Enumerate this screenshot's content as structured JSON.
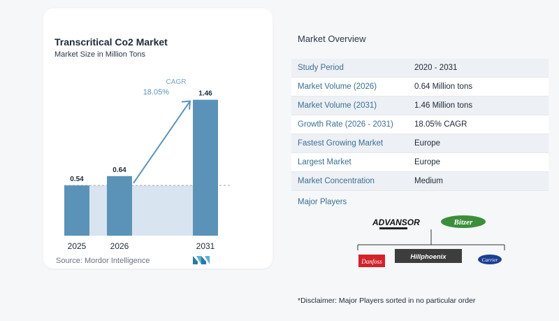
{
  "chart": {
    "title": "Transcritical Co2 Market",
    "subtitle": "Market Size in Million Tons",
    "cagr_label": "CAGR",
    "cagr_value": "18.05%",
    "source": "Source:  Mordor Intelligence"
  },
  "chart_data": {
    "type": "bar",
    "categories": [
      "2025",
      "2026",
      "2031"
    ],
    "values": [
      0.54,
      0.64,
      1.46
    ],
    "value_labels": [
      "0.54",
      "0.64",
      "1.46"
    ],
    "title": "Transcritical Co2 Market",
    "subtitle": "Market Size in Million Tons",
    "xlabel": "",
    "ylabel": "",
    "ylim": [
      0,
      1.6
    ],
    "grid": false,
    "colors": {
      "bar": "#5b93b8",
      "band": "#d8e4ef",
      "arrow": "#5b93b8",
      "label": "#1f2a37",
      "baseline_dash": "#9aa5b1"
    }
  },
  "overview": {
    "title": "Market Overview",
    "rows": [
      {
        "key": "Study Period",
        "value": "2020 - 2031"
      },
      {
        "key": "Market Volume (2026)",
        "value": "0.64 Million tons"
      },
      {
        "key": "Market Volume (2031)",
        "value": "1.46 Million tons"
      },
      {
        "key": "Growth Rate (2026 - 2031)",
        "value": "18.05% CAGR"
      },
      {
        "key": "Fastest Growing Market",
        "value": "Europe"
      },
      {
        "key": "Largest Market",
        "value": "Europe"
      },
      {
        "key": "Market Concentration",
        "value": "Medium"
      }
    ]
  },
  "players": {
    "title": "Major Players",
    "names": [
      "ADVANSOR",
      "Bitzer",
      "Danfoss",
      "Hillphoenix",
      "Carrier"
    ],
    "advansor_text": "ADVANSOR",
    "bitzer_text": "Bitzer",
    "danfoss_text": "Danfoss",
    "hillphoenix_text": "Hillphoenix",
    "carrier_text": "Carrier"
  },
  "disclaimer": "*Disclaimer: Major Players sorted in no particular order"
}
